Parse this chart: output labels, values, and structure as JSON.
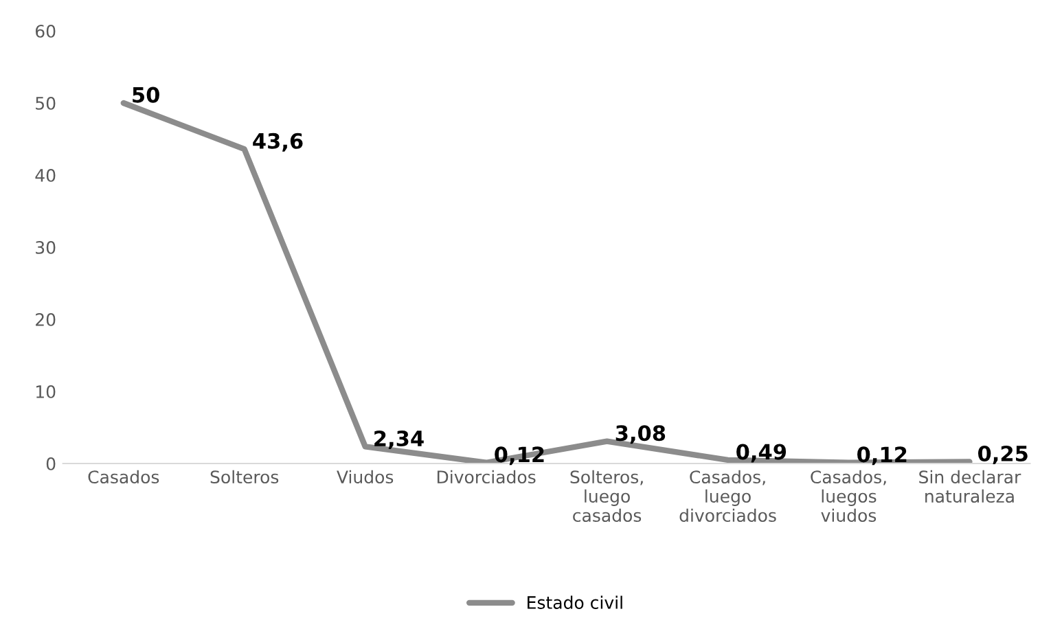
{
  "chart_data": {
    "type": "line",
    "categories": [
      "Casados",
      "Solteros",
      "Viudos",
      "Divorciados",
      "Solteros,\nluego\ncasados",
      "Casados,\nluego\ndivorciados",
      "Casados,\nluegos\nviudos",
      "Sin declarar\nnaturaleza"
    ],
    "series": [
      {
        "name": "Estado civil",
        "color": "#8c8c8c",
        "values": [
          50,
          43.6,
          2.34,
          0.12,
          3.08,
          0.49,
          0.12,
          0.25
        ],
        "value_labels": [
          "50",
          "43,6",
          "2,34",
          "0,12",
          "3,08",
          "0,49",
          "0,12",
          "0,25"
        ]
      }
    ],
    "ylim": [
      0,
      60
    ],
    "yticks": [
      0,
      10,
      20,
      30,
      40,
      50,
      60
    ],
    "grid": false,
    "legend": "bottom",
    "marker": "none",
    "line_style": "solid"
  }
}
